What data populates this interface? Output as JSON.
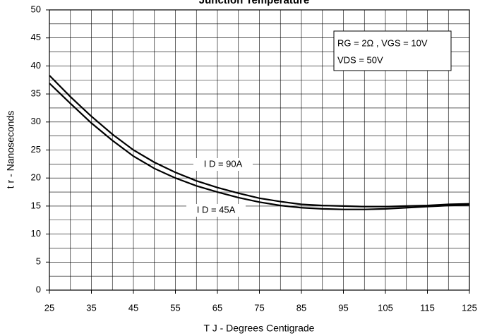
{
  "chart_data": {
    "type": "line",
    "title": "Junction Temperature",
    "xlabel": "T J - Degrees Centigrade",
    "ylabel": "t r - Nanoseconds",
    "annotation": [
      "RG = 2Ω , VGS = 10V",
      "VDS = 50V"
    ],
    "x": [
      25,
      30,
      35,
      40,
      45,
      50,
      55,
      60,
      65,
      70,
      75,
      80,
      85,
      90,
      95,
      100,
      105,
      110,
      115,
      120,
      125
    ],
    "series": [
      {
        "name": "I D = 90A",
        "color": "#000000",
        "values": [
          38.3,
          34.5,
          31,
          27.8,
          25,
          22.8,
          21,
          19.5,
          18.3,
          17.3,
          16.4,
          15.8,
          15.3,
          15.1,
          15.0,
          14.9,
          14.9,
          15.0,
          15.1,
          15.3,
          15.4
        ]
      },
      {
        "name": "I D = 45A",
        "color": "#000000",
        "values": [
          36.9,
          33.3,
          29.8,
          26.7,
          23.9,
          21.7,
          20.0,
          18.6,
          17.5,
          16.5,
          15.7,
          15.1,
          14.7,
          14.5,
          14.4,
          14.4,
          14.5,
          14.7,
          14.9,
          15.1,
          15.2
        ]
      }
    ],
    "xlim": [
      25,
      125
    ],
    "ylim": [
      0,
      50
    ],
    "xticks": [
      25,
      35,
      45,
      55,
      65,
      75,
      85,
      95,
      105,
      115,
      125
    ],
    "yticks": [
      0,
      5,
      10,
      15,
      20,
      25,
      30,
      35,
      40,
      45,
      50
    ],
    "xminorticks": [
      30,
      40,
      50,
      60,
      70,
      80,
      90,
      100,
      110,
      120
    ],
    "yminorticks": [
      2.5,
      7.5,
      12.5,
      17.5,
      22.5,
      27.5,
      32.5,
      37.5,
      42.5,
      47.5
    ],
    "grid": true
  }
}
